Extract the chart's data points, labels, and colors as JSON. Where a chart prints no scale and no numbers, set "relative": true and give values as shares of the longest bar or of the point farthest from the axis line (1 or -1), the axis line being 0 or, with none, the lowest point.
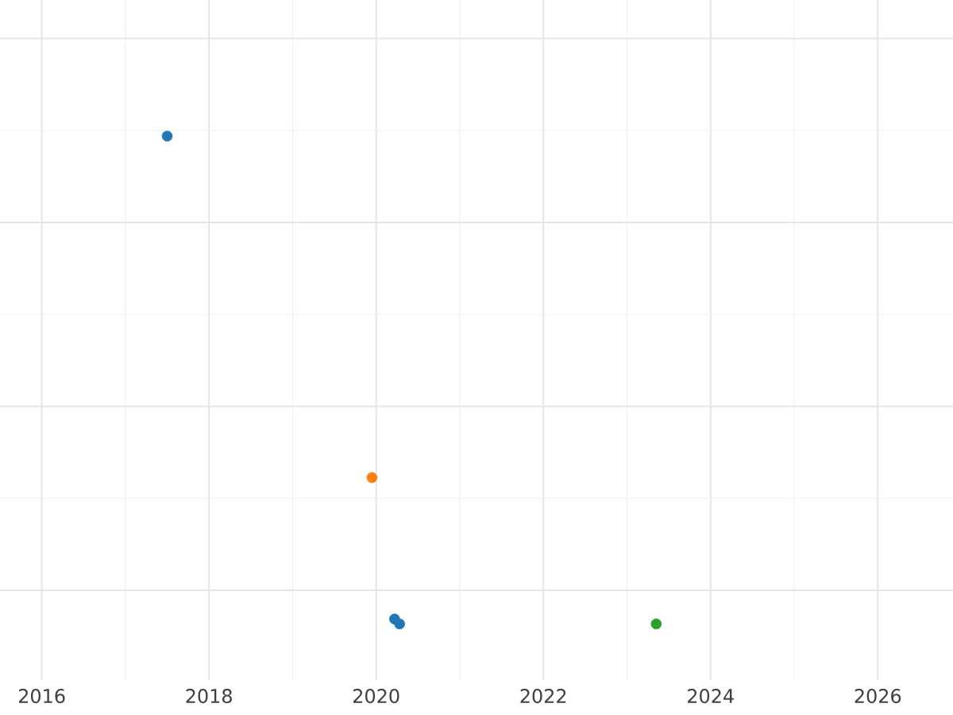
{
  "chart_data": {
    "type": "scatter",
    "relative": true,
    "series": [
      {
        "color": "#1f77b4",
        "x": [
          2017.5,
          2020.22,
          2020.28
        ],
        "values": [
          1,
          0.01,
          0
        ]
      },
      {
        "color": "#ff7f0e",
        "x": [
          2019.95
        ],
        "values": [
          0.3
        ]
      },
      {
        "color": "#2ca02c",
        "x": [
          2023.35
        ],
        "values": [
          0
        ]
      }
    ],
    "xlim": [
      2015.5,
      2026.9
    ],
    "xticks": [
      2016,
      2018,
      2020,
      2022,
      2024,
      2026
    ],
    "grid": true,
    "tick_labels": "x"
  }
}
